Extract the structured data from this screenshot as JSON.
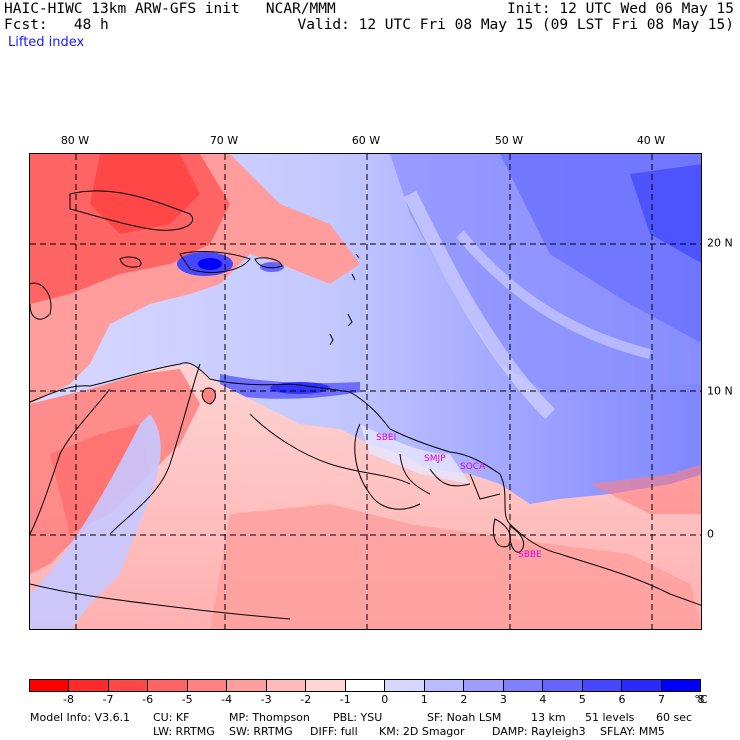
{
  "header": {
    "model_line": "HAIC-HIWC 13km ARW-GFS init   NCAR/MMM",
    "fcst_line": "Fcst:   48 h",
    "field_name": "Lifted index",
    "init_line": "Init: 12 UTC Wed 06 May 15",
    "valid_line": "Valid: 12 UTC Fri 08 May 15 (09 LST Fri 08 May 15)"
  },
  "axes": {
    "longitudes": [
      "80 W",
      "70 W",
      "60 W",
      "50 W",
      "40 W"
    ],
    "latitudes": [
      "20 N",
      "10 N",
      "0"
    ]
  },
  "map_labels": {
    "stations": [
      "SBEI",
      "SMJP",
      "SOCA",
      "SBBE"
    ],
    "station_color": "#e000e0"
  },
  "colorbar": {
    "colors": [
      "#ff0000",
      "#ff2a2a",
      "#ff4747",
      "#ff6464",
      "#ff8080",
      "#ff9d9d",
      "#ffbaba",
      "#ffd6d6",
      "#ffffff",
      "#d6d6ff",
      "#babaff",
      "#9d9dff",
      "#8080ff",
      "#6464ff",
      "#4747ff",
      "#2a2aff",
      "#0000ff"
    ],
    "tick_labels": [
      "-8",
      "-7",
      "-6",
      "-5",
      "-4",
      "-3",
      "-2",
      "-1",
      "0",
      "1",
      "2",
      "3",
      "4",
      "5",
      "6",
      "7",
      "8"
    ],
    "units": "°C"
  },
  "footer": {
    "model_info": "Model Info: V3.6.1",
    "cu": "CU: KF",
    "mp": "MP: Thompson",
    "pbl": "PBL: YSU",
    "sf": "SF: Noah LSM",
    "res": "13 km",
    "levels": "51 levels",
    "dt": "60 sec",
    "lw": "LW: RRTMG",
    "sw": "SW: RRTMG",
    "diff": "DIFF: full",
    "km": "KM: 2D Smagor",
    "damp": "DAMP: Rayleigh3",
    "sflay": "SFLAY: MM5"
  }
}
